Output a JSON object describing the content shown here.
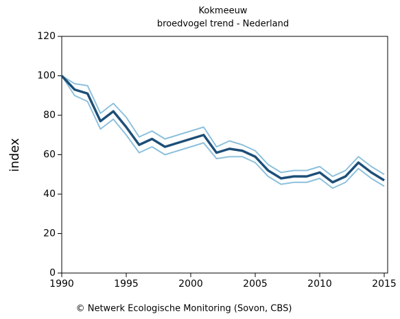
{
  "chart_data": {
    "type": "line",
    "title": "Kokmeeuw",
    "subtitle": "broedvogel trend - Nederland",
    "y_label": "index",
    "footer": "© Netwerk Ecologische Monitoring (Sovon, CBS)",
    "x": [
      1990,
      1991,
      1992,
      1993,
      1994,
      1995,
      1996,
      1997,
      1998,
      1999,
      2000,
      2001,
      2002,
      2003,
      2004,
      2005,
      2006,
      2007,
      2008,
      2009,
      2010,
      2011,
      2012,
      2013,
      2014,
      2015
    ],
    "series": [
      {
        "color": "#8cc0dc",
        "width": 2,
        "values": [
          100,
          96,
          95,
          81,
          86,
          79,
          69,
          72,
          68,
          70,
          72,
          74,
          64,
          67,
          65,
          62,
          55,
          51,
          52,
          52,
          54,
          49,
          52,
          59,
          54,
          50
        ]
      },
      {
        "color": "#8cc0dc",
        "width": 2,
        "values": [
          100,
          90,
          87,
          73,
          78,
          70,
          61,
          64,
          60,
          62,
          64,
          66,
          58,
          59,
          59,
          56,
          49,
          45,
          46,
          46,
          48,
          43,
          46,
          53,
          48,
          44
        ]
      },
      {
        "color": "#1d4f78",
        "width": 3.5,
        "values": [
          100,
          93,
          91,
          77,
          82,
          74,
          65,
          68,
          64,
          66,
          68,
          70,
          61,
          63,
          62,
          59,
          52,
          48,
          49,
          49,
          51,
          46,
          49,
          56,
          51,
          47
        ]
      }
    ],
    "xlim": [
      1990,
      2015
    ],
    "xticks": [
      1990,
      1995,
      2000,
      2005,
      2010,
      2015
    ],
    "ylim": [
      0,
      120
    ],
    "yticks": [
      0,
      20,
      40,
      60,
      80,
      100,
      120
    ]
  }
}
